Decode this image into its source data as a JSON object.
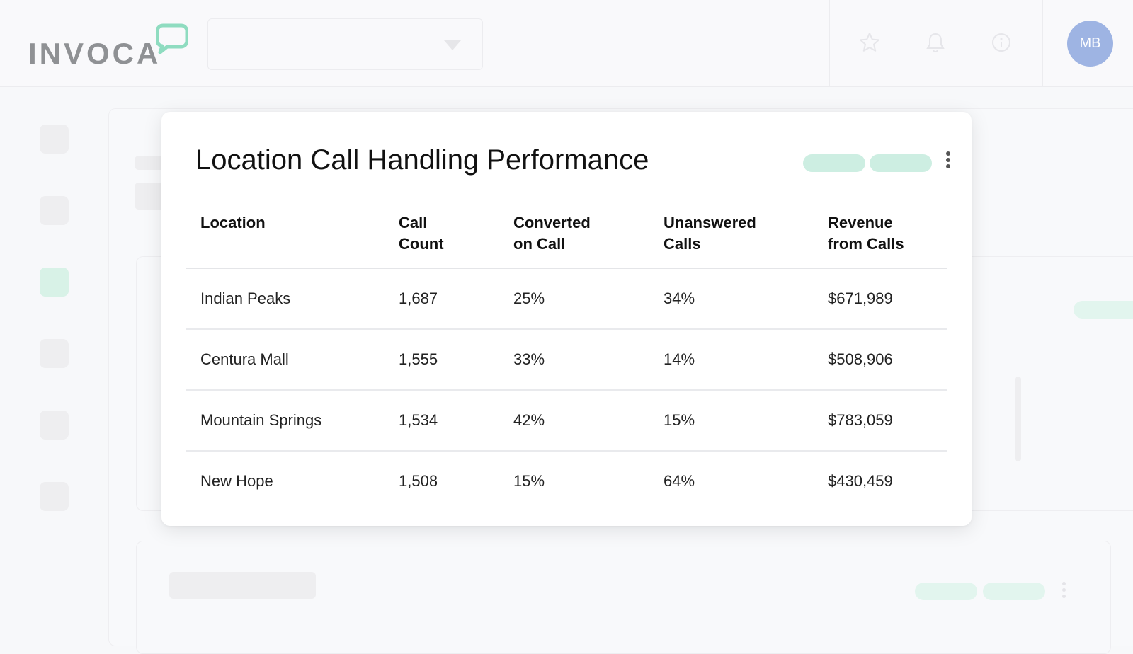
{
  "header": {
    "logo_text": "INVOCA",
    "avatar_initials": "MB",
    "icons": [
      "star-icon",
      "bell-icon",
      "help-icon"
    ]
  },
  "colors": {
    "accent_mint": "#cdeee2",
    "avatar_bg": "#9eb4e3",
    "logo_gray": "#8f9194"
  },
  "card": {
    "title": "Location Call Handling Performance",
    "columns": [
      [
        "Location"
      ],
      [
        "Call",
        "Count"
      ],
      [
        "Converted",
        "on Call"
      ],
      [
        "Unanswered",
        "Calls"
      ],
      [
        "Revenue",
        "from Calls"
      ]
    ],
    "rows": [
      [
        "Indian Peaks",
        "1,687",
        "25%",
        "34%",
        "$671,989"
      ],
      [
        "Centura Mall",
        "1,555",
        "33%",
        "14%",
        "$508,906"
      ],
      [
        "Mountain Springs",
        "1,534",
        "42%",
        "15%",
        "$783,059"
      ],
      [
        "New Hope",
        "1,508",
        "15%",
        "64%",
        "$430,459"
      ]
    ]
  }
}
